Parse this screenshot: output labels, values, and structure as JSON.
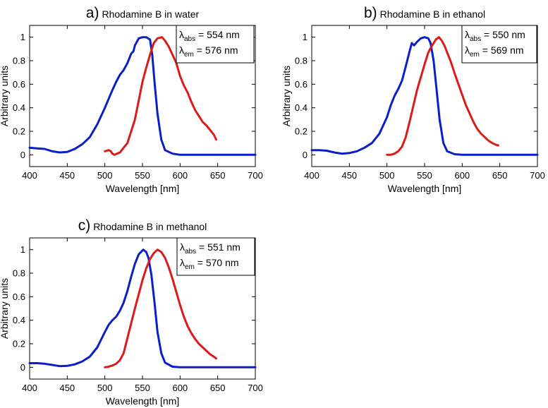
{
  "colors": {
    "absorption": "#0a1fc8",
    "emission": "#dd1a1a",
    "axis": "#000000",
    "background": "#ffffff"
  },
  "chart_data": [
    {
      "type": "line",
      "panel_letter": "a)",
      "title": "Rhodamine B in water",
      "xlabel": "Wavelength [nm]",
      "ylabel": "Arbitrary units",
      "xlim": [
        400,
        700
      ],
      "ylim": [
        -0.1,
        1.1
      ],
      "xticks": [
        400,
        450,
        500,
        550,
        600,
        650,
        700
      ],
      "yticks": [
        0,
        0.2,
        0.4,
        0.6,
        0.8,
        1
      ],
      "xtick_labels": [
        "400",
        "450",
        "500",
        "550",
        "600",
        "650",
        "700"
      ],
      "ytick_labels": [
        "0",
        "0.2",
        "0.4",
        "0.6",
        "0.8",
        "1"
      ],
      "legend_position": "top-right",
      "legend": [
        {
          "symbol": "λ",
          "sub": "abs",
          "text": " = 554 nm"
        },
        {
          "symbol": "λ",
          "sub": "em",
          "text": " = 576 nm"
        }
      ],
      "series": [
        {
          "name": "absorption",
          "color": "#0a1fc8",
          "x": [
            400,
            410,
            420,
            430,
            440,
            450,
            460,
            470,
            480,
            490,
            500,
            510,
            515,
            520,
            525,
            530,
            535,
            538,
            540,
            545,
            550,
            555,
            560,
            563,
            566,
            570,
            575,
            580,
            590,
            600,
            620,
            650,
            700
          ],
          "y": [
            0.06,
            0.055,
            0.05,
            0.03,
            0.02,
            0.025,
            0.05,
            0.09,
            0.15,
            0.26,
            0.4,
            0.55,
            0.62,
            0.68,
            0.72,
            0.78,
            0.86,
            0.88,
            0.93,
            0.99,
            1.0,
            1.0,
            0.98,
            0.85,
            0.62,
            0.35,
            0.13,
            0.04,
            0.01,
            0.0,
            0.0,
            0.0,
            0.0
          ]
        },
        {
          "name": "emission",
          "color": "#dd1a1a",
          "x": [
            500,
            505,
            508,
            510,
            513,
            516,
            520,
            525,
            530,
            540,
            550,
            555,
            560,
            565,
            570,
            576,
            580,
            585,
            590,
            595,
            600,
            605,
            610,
            615,
            620,
            625,
            630,
            635,
            640,
            645,
            648
          ],
          "y": [
            0.03,
            0.04,
            0.03,
            0.01,
            0.0,
            0.01,
            0.02,
            0.06,
            0.1,
            0.3,
            0.62,
            0.74,
            0.85,
            0.95,
            0.99,
            1.0,
            0.97,
            0.92,
            0.85,
            0.78,
            0.67,
            0.59,
            0.53,
            0.45,
            0.38,
            0.33,
            0.28,
            0.25,
            0.21,
            0.17,
            0.13
          ]
        }
      ]
    },
    {
      "type": "line",
      "panel_letter": "b)",
      "title": "Rhodamine B in ethanol",
      "xlabel": "Wavelength [nm]",
      "ylabel": "Arbitrary units",
      "xlim": [
        400,
        700
      ],
      "ylim": [
        -0.1,
        1.1
      ],
      "xticks": [
        400,
        450,
        500,
        550,
        600,
        650,
        700
      ],
      "yticks": [
        0,
        0.2,
        0.4,
        0.6,
        0.8,
        1
      ],
      "xtick_labels": [
        "400",
        "450",
        "500",
        "550",
        "600",
        "650",
        "700"
      ],
      "ytick_labels": [
        "0",
        "0.2",
        "0.4",
        "0.6",
        "0.8",
        "1"
      ],
      "legend_position": "top-right",
      "legend": [
        {
          "symbol": "λ",
          "sub": "abs",
          "text": " = 550 nm"
        },
        {
          "symbol": "λ",
          "sub": "em",
          "text": " = 569 nm"
        }
      ],
      "series": [
        {
          "name": "absorption",
          "color": "#0a1fc8",
          "x": [
            400,
            410,
            420,
            430,
            440,
            450,
            460,
            470,
            480,
            490,
            500,
            505,
            510,
            515,
            520,
            525,
            530,
            533,
            536,
            540,
            545,
            550,
            555,
            558,
            562,
            566,
            570,
            575,
            580,
            590,
            600,
            620,
            650,
            700
          ],
          "y": [
            0.04,
            0.04,
            0.035,
            0.02,
            0.01,
            0.015,
            0.03,
            0.06,
            0.1,
            0.18,
            0.32,
            0.42,
            0.5,
            0.56,
            0.63,
            0.75,
            0.88,
            0.95,
            0.93,
            0.96,
            0.99,
            1.0,
            0.99,
            0.95,
            0.8,
            0.55,
            0.3,
            0.1,
            0.03,
            0.005,
            0.0,
            0.0,
            0.0,
            0.0
          ]
        },
        {
          "name": "emission",
          "color": "#dd1a1a",
          "x": [
            500,
            505,
            510,
            515,
            520,
            525,
            530,
            540,
            550,
            555,
            560,
            565,
            569,
            573,
            577,
            580,
            585,
            590,
            595,
            600,
            605,
            610,
            615,
            620,
            625,
            630,
            635,
            640,
            645,
            648
          ],
          "y": [
            0.0,
            0.0,
            0.01,
            0.03,
            0.07,
            0.15,
            0.28,
            0.55,
            0.77,
            0.87,
            0.93,
            0.98,
            1.0,
            0.97,
            0.92,
            0.87,
            0.79,
            0.69,
            0.6,
            0.51,
            0.42,
            0.35,
            0.28,
            0.22,
            0.18,
            0.15,
            0.12,
            0.1,
            0.085,
            0.08
          ]
        }
      ]
    },
    {
      "type": "line",
      "panel_letter": "c)",
      "title": "Rhodamine B in methanol",
      "xlabel": "Wavelength [nm]",
      "ylabel": "Arbitrary units",
      "xlim": [
        400,
        700
      ],
      "ylim": [
        -0.1,
        1.1
      ],
      "xticks": [
        400,
        450,
        500,
        550,
        600,
        650,
        700
      ],
      "yticks": [
        0,
        0.2,
        0.4,
        0.6,
        0.8,
        1
      ],
      "xtick_labels": [
        "400",
        "450",
        "500",
        "550",
        "600",
        "650",
        "700"
      ],
      "ytick_labels": [
        "0",
        "0.2",
        "0.4",
        "0.6",
        "0.8",
        "1"
      ],
      "legend_position": "top-right",
      "legend": [
        {
          "symbol": "λ",
          "sub": "abs",
          "text": " = 551 nm"
        },
        {
          "symbol": "λ",
          "sub": "em",
          "text": " = 570 nm"
        }
      ],
      "series": [
        {
          "name": "absorption",
          "color": "#0a1fc8",
          "x": [
            400,
            410,
            420,
            430,
            440,
            450,
            460,
            470,
            480,
            490,
            500,
            505,
            510,
            515,
            520,
            525,
            530,
            535,
            540,
            545,
            551,
            555,
            558,
            562,
            566,
            570,
            575,
            580,
            590,
            600,
            620,
            650,
            700
          ],
          "y": [
            0.035,
            0.035,
            0.03,
            0.02,
            0.01,
            0.012,
            0.025,
            0.05,
            0.09,
            0.17,
            0.3,
            0.36,
            0.4,
            0.43,
            0.48,
            0.55,
            0.65,
            0.77,
            0.88,
            0.96,
            1.0,
            0.98,
            0.93,
            0.78,
            0.55,
            0.3,
            0.12,
            0.04,
            0.005,
            0.0,
            0.0,
            0.0,
            0.0
          ]
        },
        {
          "name": "emission",
          "color": "#dd1a1a",
          "x": [
            500,
            505,
            510,
            515,
            520,
            525,
            530,
            540,
            550,
            555,
            560,
            565,
            570,
            575,
            580,
            585,
            590,
            595,
            600,
            605,
            610,
            615,
            620,
            625,
            630,
            635,
            640,
            645,
            648
          ],
          "y": [
            0.0,
            0.005,
            0.015,
            0.03,
            0.06,
            0.12,
            0.25,
            0.5,
            0.74,
            0.84,
            0.92,
            0.97,
            1.0,
            0.98,
            0.93,
            0.85,
            0.75,
            0.64,
            0.53,
            0.43,
            0.35,
            0.29,
            0.24,
            0.2,
            0.17,
            0.14,
            0.11,
            0.09,
            0.075
          ]
        }
      ]
    }
  ]
}
